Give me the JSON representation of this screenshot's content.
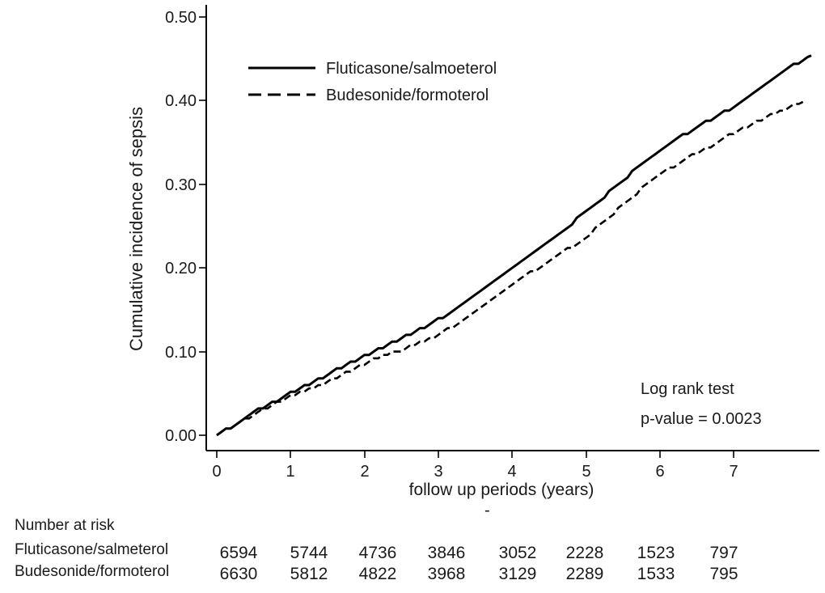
{
  "figure": {
    "background": "#ffffff",
    "text_color": "#1a1a1a",
    "line_color": "#000000"
  },
  "chart_data": {
    "type": "line",
    "title": "",
    "xlabel": "follow up periods (years)",
    "ylabel": "Cumulative incidence of sepsis",
    "xlim": [
      0,
      8.2
    ],
    "ylim": [
      0,
      0.5
    ],
    "grid": false,
    "x_tick_labels": [
      "0",
      "1",
      "2",
      "3",
      "4",
      "5",
      "6",
      "7"
    ],
    "y_tick_labels": [
      "0.00",
      "0.10",
      "0.20",
      "0.30",
      "0.40",
      "0.50"
    ],
    "legend_position": "top-left-inside",
    "annotation": {
      "line1": "Log rank test",
      "line2": "p-value = 0.0023"
    },
    "stray_mark": "-",
    "series": [
      {
        "name": "Fluticasone/salmoeterol",
        "style": "solid",
        "color": "#000000",
        "x": [
          0,
          0.25,
          0.5,
          0.75,
          1,
          1.25,
          1.5,
          1.75,
          2,
          2.25,
          2.5,
          2.75,
          3,
          3.25,
          3.5,
          3.75,
          4,
          4.25,
          4.5,
          4.75,
          5,
          5.25,
          5.5,
          5.75,
          6,
          6.25,
          6.5,
          6.75,
          7,
          7.25,
          7.5,
          7.75,
          8,
          8.05
        ],
        "y": [
          0,
          0.013,
          0.027,
          0.039,
          0.05,
          0.061,
          0.073,
          0.084,
          0.095,
          0.105,
          0.116,
          0.127,
          0.138,
          0.152,
          0.166,
          0.185,
          0.198,
          0.215,
          0.232,
          0.249,
          0.267,
          0.286,
          0.305,
          0.323,
          0.341,
          0.355,
          0.368,
          0.38,
          0.393,
          0.408,
          0.423,
          0.44,
          0.45,
          0.454
        ]
      },
      {
        "name": "Budesonide/formoterol",
        "style": "dashed",
        "color": "#000000",
        "x": [
          0,
          0.25,
          0.5,
          0.75,
          1,
          1.25,
          1.5,
          1.75,
          2,
          2.25,
          2.5,
          2.75,
          3,
          3.25,
          3.5,
          3.75,
          4,
          4.25,
          4.5,
          4.75,
          5,
          5.25,
          5.5,
          5.75,
          6,
          6.25,
          6.5,
          6.75,
          7,
          7.25,
          7.5,
          7.75,
          7.95
        ],
        "y": [
          0,
          0.012,
          0.025,
          0.036,
          0.046,
          0.055,
          0.063,
          0.075,
          0.086,
          0.094,
          0.102,
          0.111,
          0.119,
          0.133,
          0.148,
          0.164,
          0.18,
          0.194,
          0.208,
          0.222,
          0.237,
          0.256,
          0.275,
          0.294,
          0.312,
          0.325,
          0.337,
          0.349,
          0.361,
          0.372,
          0.383,
          0.392,
          0.399
        ]
      }
    ]
  },
  "risk_table": {
    "title": "Number at risk",
    "rows": [
      {
        "label": "Fluticasone/salmeterol",
        "values": [
          "6594",
          "5744",
          "4736",
          "3846",
          "3052",
          "2228",
          "1523",
          "797"
        ]
      },
      {
        "label": "Budesonide/formoterol",
        "values": [
          "6630",
          "5812",
          "4822",
          "3968",
          "3129",
          "2289",
          "1533",
          "795"
        ]
      }
    ]
  }
}
